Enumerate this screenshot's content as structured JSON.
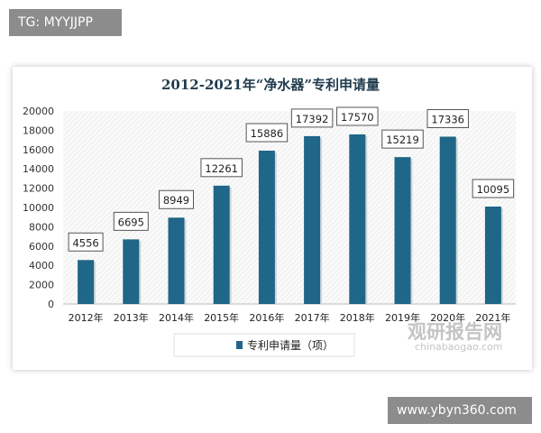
{
  "watermark_top_left": "TG: MYYJJPP",
  "watermark_bottom_right": "www.ybyn360.com",
  "source_logo": {
    "name": "观研报告网",
    "url_text": "chinabaogao.com"
  },
  "chart_data": {
    "type": "bar",
    "title": "2012-2021年“净水器”专利申请量",
    "categories": [
      "2012年",
      "2013年",
      "2014年",
      "2015年",
      "2016年",
      "2017年",
      "2018年",
      "2019年",
      "2020年",
      "2021年"
    ],
    "series": [
      {
        "name": "专利申请量（项）",
        "values": [
          4556,
          6695,
          8949,
          12261,
          15886,
          17392,
          17570,
          15219,
          17336,
          10095
        ]
      }
    ],
    "ylim": [
      0,
      20000
    ],
    "yticks": [
      0,
      2000,
      4000,
      6000,
      8000,
      10000,
      12000,
      14000,
      16000,
      18000,
      20000
    ],
    "color": "#1f6688",
    "legend": "bottom",
    "grid": false,
    "data_labels": true
  }
}
